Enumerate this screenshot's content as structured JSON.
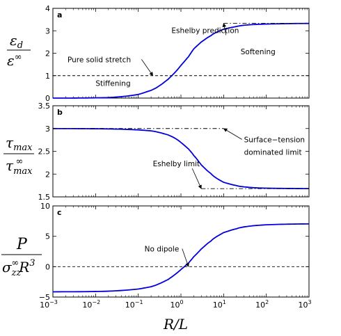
{
  "chart_data": [
    {
      "type": "line",
      "panel_label": "a",
      "ylabel": {
        "num": "ε",
        "num_sub": "d",
        "den": "ε",
        "den_sup": "∞"
      },
      "xscale": "log",
      "xlim": [
        0.001,
        1000
      ],
      "ylim": [
        0,
        4
      ],
      "yticks": [
        "0",
        "1",
        "2",
        "3",
        "4"
      ],
      "series": [
        {
          "style": "solid",
          "color": "#0000dd",
          "x": [
            0.001,
            0.003,
            0.01,
            0.03,
            0.1,
            0.2,
            0.3,
            0.5,
            0.7,
            1,
            1.5,
            2,
            3,
            5,
            7,
            10,
            20,
            30,
            50,
            100,
            300,
            1000
          ],
          "y": [
            0.0,
            0.0,
            0.01,
            0.03,
            0.15,
            0.35,
            0.5,
            0.85,
            1.1,
            1.45,
            1.85,
            2.2,
            2.5,
            2.8,
            2.95,
            3.07,
            3.2,
            3.25,
            3.28,
            3.3,
            3.32,
            3.33
          ]
        },
        {
          "style": "dashed",
          "color": "#000000",
          "x": [
            0.001,
            1000
          ],
          "y": [
            1,
            1
          ]
        },
        {
          "style": "dashdot",
          "color": "#000000",
          "x": [
            10,
            1000
          ],
          "y": [
            3.33,
            3.33
          ]
        }
      ],
      "annotations": [
        {
          "text": "Eshelby prediction",
          "x": 0.6,
          "y": 2.9,
          "arrow_to": [
            10,
            3.33
          ]
        },
        {
          "text": "Softening",
          "x": 25,
          "y": 1.95
        },
        {
          "text": "Pure solid stretch",
          "x": 0.0022,
          "y": 1.6,
          "arrow_to": [
            0.22,
            1.0
          ]
        },
        {
          "text": "Stiffening",
          "x": 0.01,
          "y": 0.55
        }
      ]
    },
    {
      "type": "line",
      "panel_label": "b",
      "ylabel": {
        "num": "τ",
        "num_sub": "max",
        "den": "τ",
        "den_sub": "max",
        "den_sup": "∞"
      },
      "xscale": "log",
      "xlim": [
        0.001,
        1000
      ],
      "ylim": [
        1.5,
        3.5
      ],
      "yticks": [
        "1.5",
        "2",
        "2.5",
        "3",
        "3.5"
      ],
      "series": [
        {
          "style": "solid",
          "color": "#0000dd",
          "x": [
            0.001,
            0.01,
            0.03,
            0.1,
            0.2,
            0.3,
            0.5,
            0.7,
            1,
            1.5,
            2,
            3,
            5,
            7,
            10,
            20,
            30,
            50,
            100,
            300,
            1000
          ],
          "y": [
            3.0,
            2.995,
            2.99,
            2.97,
            2.95,
            2.92,
            2.86,
            2.8,
            2.7,
            2.55,
            2.42,
            2.2,
            2.0,
            1.9,
            1.82,
            1.74,
            1.72,
            1.7,
            1.69,
            1.685,
            1.68
          ]
        },
        {
          "style": "dashdot",
          "color": "#000000",
          "x": [
            0.001,
            10
          ],
          "y": [
            3.0,
            3.0
          ]
        },
        {
          "style": "dashdot",
          "color": "#000000",
          "x": [
            3,
            1000
          ],
          "y": [
            1.68,
            1.68
          ]
        }
      ],
      "annotations": [
        {
          "text": "Surface−tension",
          "x": 30,
          "y": 2.7,
          "arrow_to": [
            10,
            3.0
          ]
        },
        {
          "text": "dominated limit",
          "x": 30,
          "y": 2.42
        },
        {
          "text": "Eshelby limit",
          "x": 0.22,
          "y": 2.17,
          "arrow_to": [
            3,
            1.68
          ]
        }
      ]
    },
    {
      "type": "line",
      "panel_label": "c",
      "ylabel": {
        "num": "P",
        "den": "σ",
        "den_sub": "zz",
        "den_sup": "∞",
        "den_tail": "R",
        "den_tail_sup": "3"
      },
      "xlabel": "R/L",
      "xscale": "log",
      "xlim": [
        0.001,
        1000
      ],
      "ylim": [
        -5,
        10
      ],
      "xticks": [
        {
          "base": "10",
          "exp": "−3"
        },
        {
          "base": "10",
          "exp": "−2"
        },
        {
          "base": "10",
          "exp": "−1"
        },
        {
          "base": "10",
          "exp": "0"
        },
        {
          "base": "10",
          "exp": "1"
        },
        {
          "base": "10",
          "exp": "2"
        },
        {
          "base": "10",
          "exp": "3"
        }
      ],
      "yticks": [
        "−5",
        "0",
        "5",
        "10"
      ],
      "series": [
        {
          "style": "solid",
          "color": "#0000dd",
          "x": [
            0.001,
            0.01,
            0.03,
            0.1,
            0.2,
            0.3,
            0.5,
            0.7,
            1,
            1.5,
            2,
            3,
            5,
            7,
            10,
            20,
            30,
            50,
            100,
            300,
            1000
          ],
          "y": [
            -4.15,
            -4.1,
            -4.0,
            -3.7,
            -3.3,
            -2.9,
            -2.1,
            -1.4,
            -0.5,
            0.6,
            1.6,
            2.9,
            4.3,
            5.0,
            5.6,
            6.3,
            6.55,
            6.75,
            6.9,
            7.0,
            7.05
          ]
        },
        {
          "style": "dashed",
          "color": "#000000",
          "x": [
            0.001,
            1000
          ],
          "y": [
            0,
            0
          ]
        }
      ],
      "annotations": [
        {
          "text": "No dipole",
          "x": 0.14,
          "y": 2.5,
          "arrow_to": [
            1.5,
            0
          ]
        }
      ]
    }
  ]
}
